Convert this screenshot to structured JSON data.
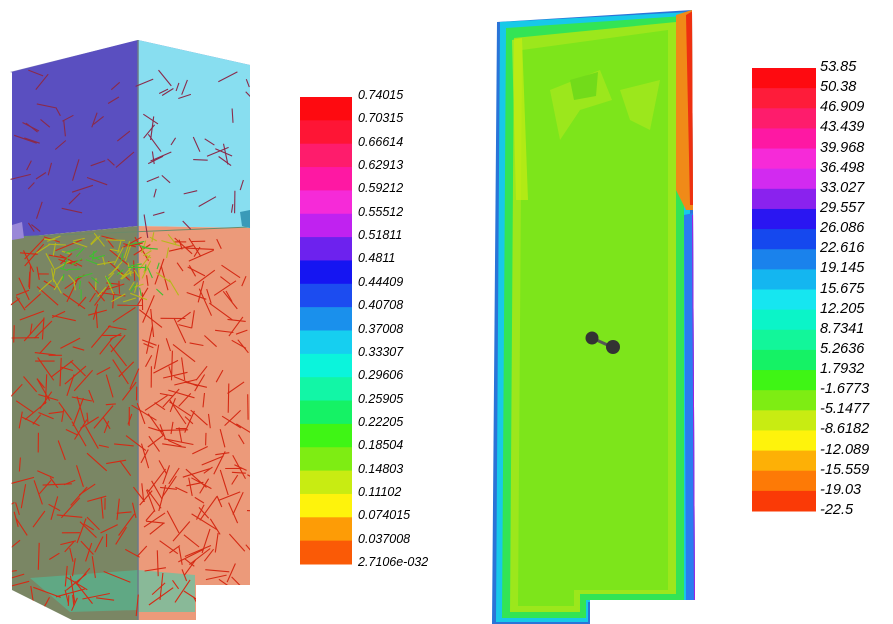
{
  "legend_left": {
    "labels": [
      "0.74015",
      "0.70315",
      "0.66614",
      "0.62913",
      "0.59212",
      "0.55512",
      "0.51811",
      "0.4811",
      "0.44409",
      "0.40708",
      "0.37008",
      "0.33307",
      "0.29606",
      "0.25905",
      "0.22205",
      "0.18504",
      "0.14803",
      "0.11102",
      "0.074015",
      "0.037008",
      "2.7106e-032"
    ],
    "colors": [
      "#fe0a10",
      "#fe1535",
      "#fe1c6c",
      "#fe18a3",
      "#f62ad8",
      "#c022f0",
      "#6d22ee",
      "#1515f2",
      "#1c4cf0",
      "#1a90ec",
      "#16cff0",
      "#0bf4dc",
      "#12f6a6",
      "#15f265",
      "#3ff515",
      "#7eed13",
      "#c8ec12",
      "#fef30c",
      "#fd9c06",
      "#fa5a06"
    ]
  },
  "legend_right": {
    "labels": [
      "53.85",
      "50.38",
      "46.909",
      "43.439",
      "39.968",
      "36.498",
      "33.027",
      "29.557",
      "26.086",
      "22.616",
      "19.145",
      "15.675",
      "12.205",
      "8.7341",
      "5.2636",
      "1.7932",
      "-1.6773",
      "-5.1477",
      "-8.6182",
      "-12.089",
      "-15.559",
      "-19.03",
      "-22.5"
    ],
    "colors": [
      "#fe0a10",
      "#fe1c3a",
      "#fe1c6c",
      "#fe18a3",
      "#f62ad8",
      "#d22af0",
      "#8a22ee",
      "#2a16f2",
      "#1548ee",
      "#1a82ec",
      "#14b6f0",
      "#16e6f0",
      "#0bf4c8",
      "#12f69a",
      "#15f265",
      "#3ff515",
      "#7eed13",
      "#c8ec12",
      "#fef30c",
      "#fdb006",
      "#fd7a06",
      "#fa3a06"
    ]
  }
}
